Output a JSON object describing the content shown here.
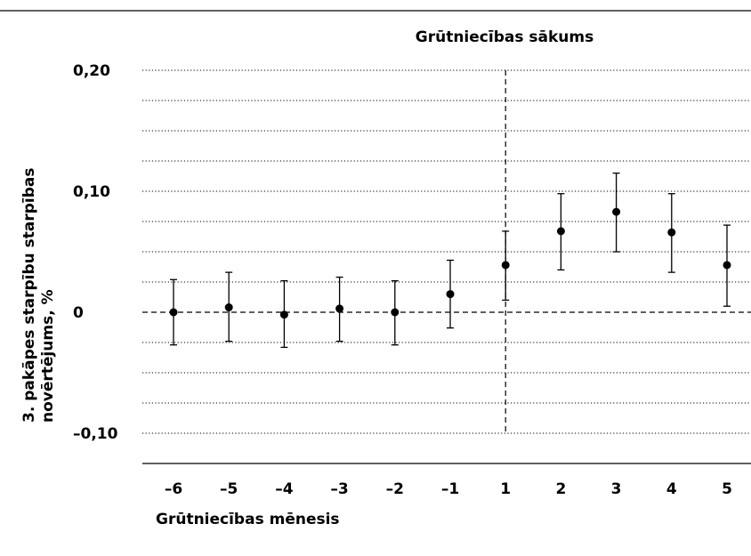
{
  "chart_data": {
    "type": "scatter",
    "title": "",
    "annotation": "Grūtniecības sākums",
    "xlabel": "Grūtniecības mēnesis",
    "ylabel_lines": [
      "3. pakāpes starpību starpības",
      "novērtējums, %"
    ],
    "categories": [
      "–6",
      "–5",
      "–4",
      "–3",
      "–2",
      "–1",
      "1",
      "2",
      "3",
      "4",
      "5"
    ],
    "values": [
      0.0,
      0.004,
      -0.002,
      0.003,
      0.0,
      0.015,
      0.039,
      0.067,
      0.083,
      0.066,
      0.039
    ],
    "ci_lower": [
      -0.027,
      -0.024,
      -0.029,
      -0.024,
      -0.027,
      -0.013,
      0.01,
      0.035,
      0.05,
      0.033,
      0.005
    ],
    "ci_upper": [
      0.027,
      0.033,
      0.026,
      0.029,
      0.026,
      0.043,
      0.067,
      0.098,
      0.115,
      0.098,
      0.072
    ],
    "ylim": [
      -0.1,
      0.2
    ],
    "grid_step": 0.025,
    "ytick_values": [
      0.2,
      0.1,
      0,
      -0.1
    ],
    "ytick_labels": [
      "0,20",
      "0,10",
      "0",
      "–0,10"
    ],
    "reference_line_y": 0,
    "reference_line_category": "1",
    "grid": true
  }
}
